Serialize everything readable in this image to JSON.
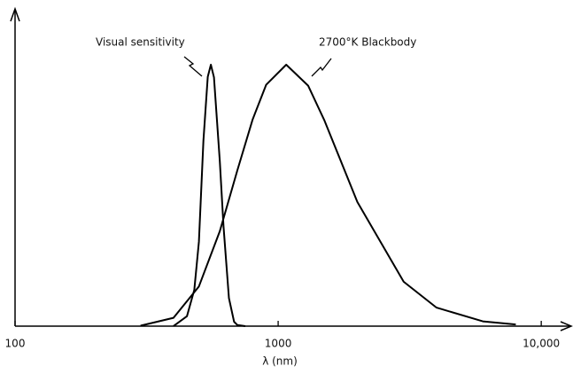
{
  "chart_data": {
    "type": "line",
    "xlabel": "λ (nm)",
    "xscale": "log",
    "xlim": [
      100,
      13000
    ],
    "xticks": [
      100,
      1000,
      {
        "value": 10000,
        "label": "10,000"
      }
    ],
    "ylim": [
      0,
      1.2
    ],
    "series": [
      {
        "name": "Visual sensitivity",
        "color": "#000000",
        "x": [
          400,
          450,
          480,
          500,
          520,
          540,
          555,
          570,
          600,
          620,
          650,
          680,
          700,
          750
        ],
        "values": [
          0.0004,
          0.038,
          0.139,
          0.323,
          0.71,
          0.954,
          1.0,
          0.952,
          0.631,
          0.381,
          0.107,
          0.017,
          0.004,
          0.0001
        ]
      },
      {
        "name": "2700°K Blackbody",
        "color": "#000000",
        "x": [
          300,
          400,
          500,
          600,
          700,
          800,
          900,
          1073,
          1300,
          1500,
          2000,
          3000,
          4000,
          6000,
          8000
        ],
        "values": [
          0.0016,
          0.032,
          0.152,
          0.363,
          0.597,
          0.791,
          0.923,
          1.0,
          0.92,
          0.786,
          0.475,
          0.17,
          0.071,
          0.0182,
          0.0065
        ]
      }
    ]
  }
}
